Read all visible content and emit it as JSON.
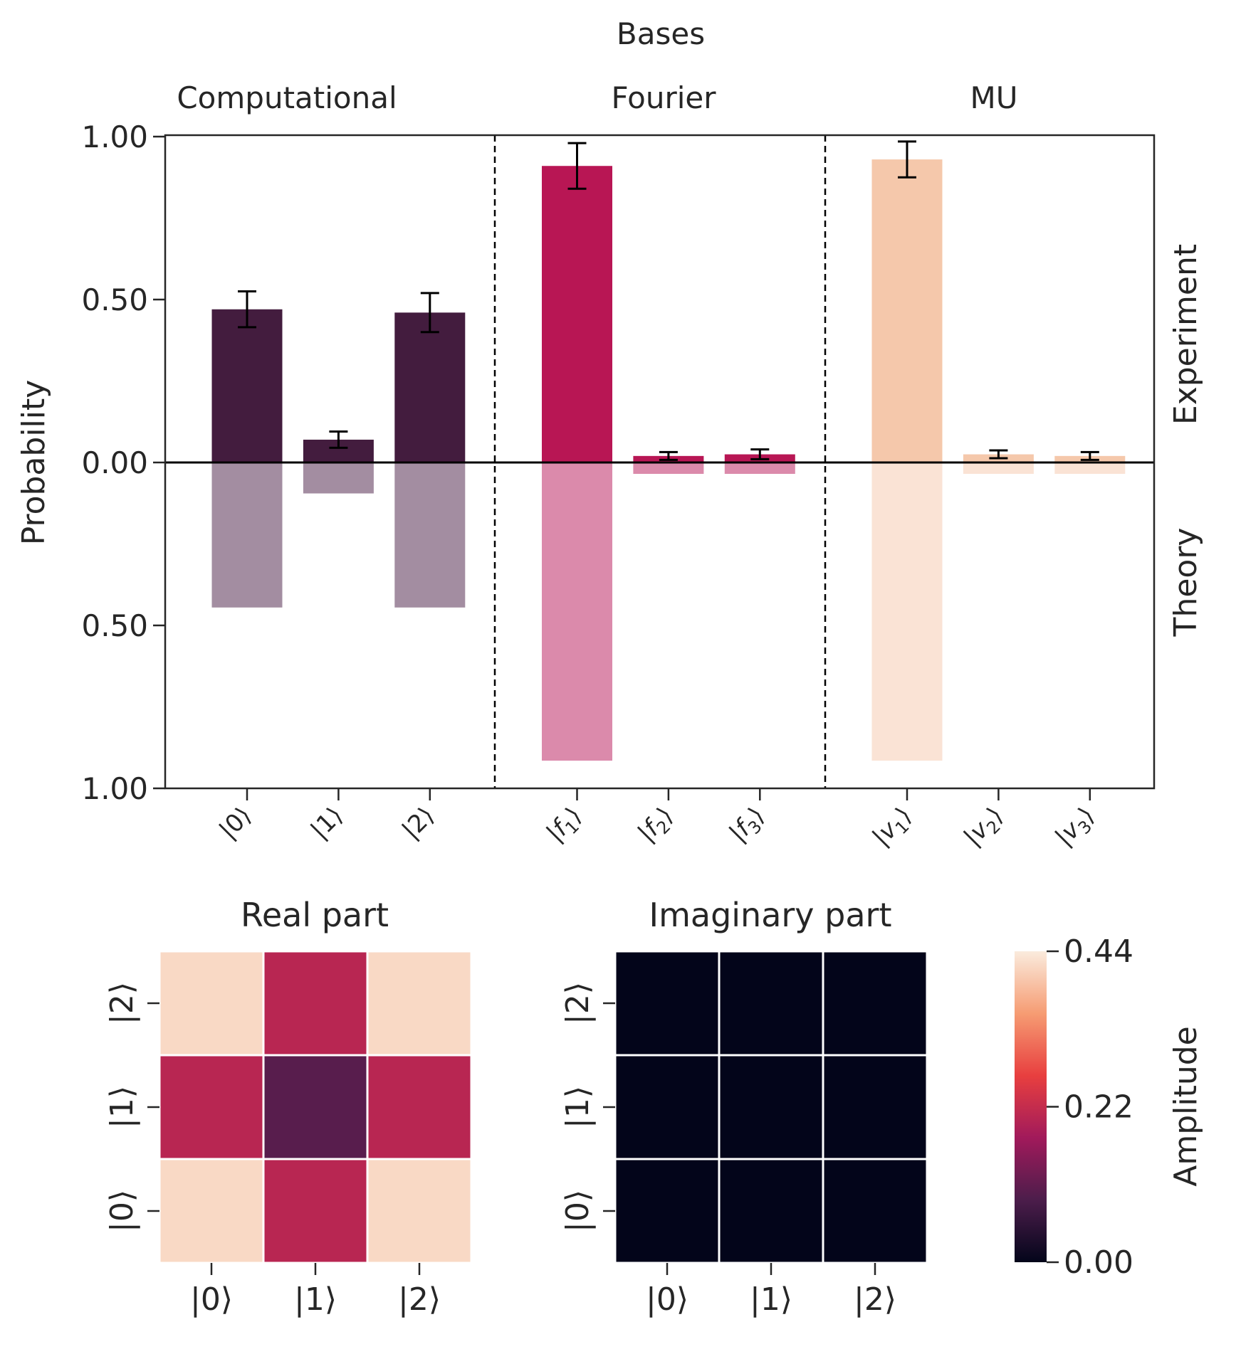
{
  "chart_data": [
    {
      "type": "bar",
      "title": "Bases",
      "ylabel": "Probability",
      "ylim": [
        -1.0,
        1.0
      ],
      "yticks": [
        1.0,
        0.5,
        0.0,
        -0.5,
        -1.0
      ],
      "ytick_labels": [
        "1.00",
        "0.50",
        "0.00",
        "0.50",
        "1.00"
      ],
      "right_labels": {
        "upper": "Experiment",
        "lower": "Theory"
      },
      "groups": [
        {
          "name": "Computational",
          "color": "#431c3e",
          "light_color": "#a38da1",
          "categories": [
            "|0⟩",
            "|1⟩",
            "|2⟩"
          ],
          "experiment": [
            0.47,
            0.07,
            0.46
          ],
          "error": [
            0.055,
            0.025,
            0.06
          ],
          "theory": [
            0.445,
            0.095,
            0.445
          ]
        },
        {
          "name": "Fourier",
          "color": "#b81654",
          "light_color": "#db8aab",
          "categories": [
            "|f1⟩",
            "|f2⟩",
            "|f3⟩"
          ],
          "category_parts": [
            [
              "|f",
              "1",
              "⟩"
            ],
            [
              "|f",
              "2",
              "⟩"
            ],
            [
              "|f",
              "3",
              "⟩"
            ]
          ],
          "experiment": [
            0.91,
            0.02,
            0.025
          ],
          "error": [
            0.07,
            0.012,
            0.015
          ],
          "theory": [
            0.915,
            0.035,
            0.035
          ]
        },
        {
          "name": "MU",
          "color": "#f5c8ab",
          "light_color": "#fae3d5",
          "categories": [
            "|v1⟩",
            "|v2⟩",
            "|v3⟩"
          ],
          "category_parts": [
            [
              "|v",
              "1",
              "⟩"
            ],
            [
              "|v",
              "2",
              "⟩"
            ],
            [
              "|v",
              "3",
              "⟩"
            ]
          ],
          "experiment": [
            0.93,
            0.025,
            0.02
          ],
          "error": [
            0.055,
            0.012,
            0.012
          ],
          "theory": [
            0.915,
            0.035,
            0.035
          ]
        }
      ]
    },
    {
      "type": "heatmap",
      "title": "Real part",
      "x_labels": [
        "|0⟩",
        "|1⟩",
        "|2⟩"
      ],
      "y_labels": [
        "|0⟩",
        "|1⟩",
        "|2⟩"
      ],
      "values": [
        [
          0.42,
          0.205,
          0.42
        ],
        [
          0.205,
          0.1,
          0.205
        ],
        [
          0.42,
          0.205,
          0.42
        ]
      ]
    },
    {
      "type": "heatmap",
      "title": "Imaginary part",
      "x_labels": [
        "|0⟩",
        "|1⟩",
        "|2⟩"
      ],
      "y_labels": [
        "|0⟩",
        "|1⟩",
        "|2⟩"
      ],
      "values": [
        [
          0.0,
          0.0,
          0.0
        ],
        [
          0.0,
          0.0,
          0.0
        ],
        [
          0.0,
          0.0,
          0.0
        ]
      ]
    }
  ],
  "colorbar": {
    "label": "Amplitude",
    "min": 0.0,
    "max": 0.44,
    "ticks": [
      0.0,
      0.22,
      0.44
    ],
    "tick_labels": [
      "0.00",
      "0.22",
      "0.44"
    ],
    "stops": [
      "#03051a",
      "#4c1d4b",
      "#a11a5b",
      "#e83f3f",
      "#f69c73",
      "#faebdd"
    ]
  }
}
